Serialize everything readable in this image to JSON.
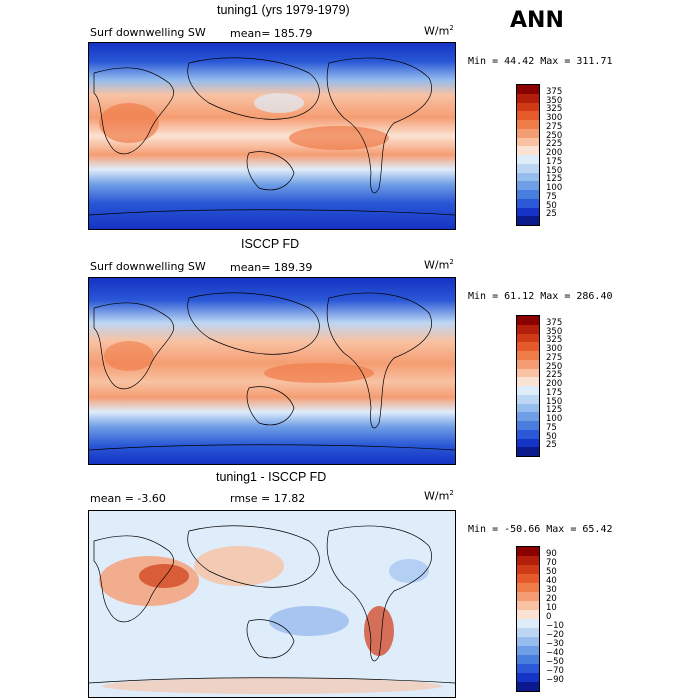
{
  "season": "ANN",
  "panels": [
    {
      "title": "tuning1 (yrs 1979-1979)",
      "left_label": "Surf downwelling SW",
      "mid_label": "mean= 185.79",
      "units": "W/m",
      "units_exp": "2",
      "minmax": "Min =  44.42 Max = 311.71",
      "colorbar": {
        "ticks": [
          "375",
          "350",
          "325",
          "300",
          "275",
          "250",
          "225",
          "200",
          "175",
          "150",
          "125",
          "100",
          "75",
          "50",
          "25"
        ],
        "colors": [
          "#8b0000",
          "#b41f0b",
          "#d03a16",
          "#e55a2b",
          "#f07c4a",
          "#f59d72",
          "#f8c2a3",
          "#fbe3d3",
          "#dfecfa",
          "#bcd6f4",
          "#96bdee",
          "#6f9ee6",
          "#4a7ede",
          "#2a58d6",
          "#1533c4",
          "#0a1a8c"
        ]
      }
    },
    {
      "title": "ISCCP FD",
      "left_label": "Surf downwelling SW",
      "mid_label": "mean= 189.39",
      "units": "W/m",
      "units_exp": "2",
      "minmax": "Min =  61.12 Max = 286.40",
      "colorbar": {
        "ticks": [
          "375",
          "350",
          "325",
          "300",
          "275",
          "250",
          "225",
          "200",
          "175",
          "150",
          "125",
          "100",
          "75",
          "50",
          "25"
        ],
        "colors": [
          "#8b0000",
          "#b41f0b",
          "#d03a16",
          "#e55a2b",
          "#f07c4a",
          "#f59d72",
          "#f8c2a3",
          "#fbe3d3",
          "#dfecfa",
          "#bcd6f4",
          "#96bdee",
          "#6f9ee6",
          "#4a7ede",
          "#2a58d6",
          "#1533c4",
          "#0a1a8c"
        ]
      }
    },
    {
      "title": "tuning1 - ISCCP FD",
      "left_label": "mean =   -3.60",
      "mid_label": "rmse =   17.82",
      "units": "W/m",
      "units_exp": "2",
      "minmax": "Min = -50.66 Max =  65.42",
      "colorbar": {
        "ticks": [
          "90",
          "70",
          "50",
          "40",
          "30",
          "20",
          "10",
          "0",
          "−10",
          "−20",
          "−30",
          "−40",
          "−50",
          "−70",
          "−90"
        ],
        "colors": [
          "#8b0000",
          "#b41f0b",
          "#d03a16",
          "#e55a2b",
          "#f07c4a",
          "#f59d72",
          "#f8c2a3",
          "#fbe3d3",
          "#dfecfa",
          "#bcd6f4",
          "#96bdee",
          "#6f9ee6",
          "#4a7ede",
          "#2a58d6",
          "#1533c4",
          "#0a1a8c"
        ]
      }
    }
  ]
}
